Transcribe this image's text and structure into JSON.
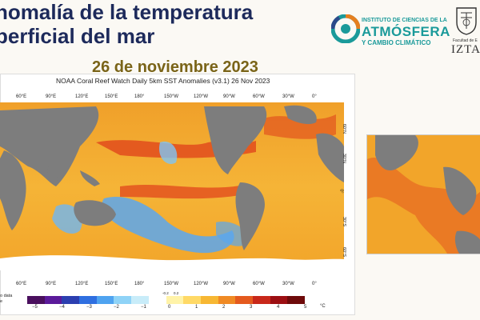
{
  "slide": {
    "title_line1": "nomalía de la temperatura",
    "title_line2": "perficial del mar",
    "date": "26 de noviembre 2023"
  },
  "logos": {
    "icna_line1": "INSTITUTO DE CIENCIAS DE LA",
    "icna_line2": "ATMÓSFERA",
    "icna_line3": "Y CAMBIO CLIMÁTICO",
    "unam_faculty": "Facultad de E",
    "unam_campus": "IZTA"
  },
  "map": {
    "title": "NOAA Coral Reef Watch Daily 5km SST Anomalies  (v3.1)   26 Nov 2023",
    "lon_labels": [
      "60°E",
      "90°E",
      "120°E",
      "150°E",
      "180°",
      "150°W",
      "120°W",
      "90°W",
      "60°W",
      "30°W",
      "0°"
    ],
    "lat_labels": [
      "60°N",
      "30°N",
      "0°",
      "30°S",
      "60°S"
    ],
    "no_data": "o data",
    "no_data_2": "e",
    "unit": "°C",
    "colorbar_ticks": [
      "−5",
      "−4",
      "−3",
      "−2",
      "−1",
      "0",
      "1",
      "2",
      "3",
      "4",
      "5"
    ],
    "small_ticks": [
      "-0.2",
      "0.2"
    ],
    "colorbar_colors": [
      "#4a0f5e",
      "#5b1a9a",
      "#2c3fb0",
      "#2f6fe0",
      "#4fa3f0",
      "#8fd3f7",
      "#c8ecf9",
      "#ffffff",
      "#fff3a8",
      "#ffd966",
      "#f7b733",
      "#f08a24",
      "#e45a1e",
      "#c8281a",
      "#9c0f12",
      "#6e0a0a"
    ],
    "colors": {
      "land": "#7d7d7d",
      "warm": "#f2a52a",
      "hot": "#e0461c",
      "cool": "#5aa7ee",
      "ice": "#ffffff",
      "ocean_base": "#f5c040"
    }
  }
}
